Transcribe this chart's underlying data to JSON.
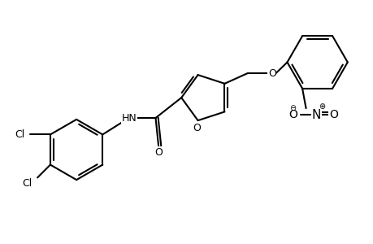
{
  "bg_color": "#ffffff",
  "line_color": "#000000",
  "line_width": 1.5,
  "font_size": 9,
  "figsize": [
    4.6,
    3.0
  ],
  "dpi": 100,
  "xlim": [
    0,
    10
  ],
  "ylim": [
    0,
    6.5
  ]
}
